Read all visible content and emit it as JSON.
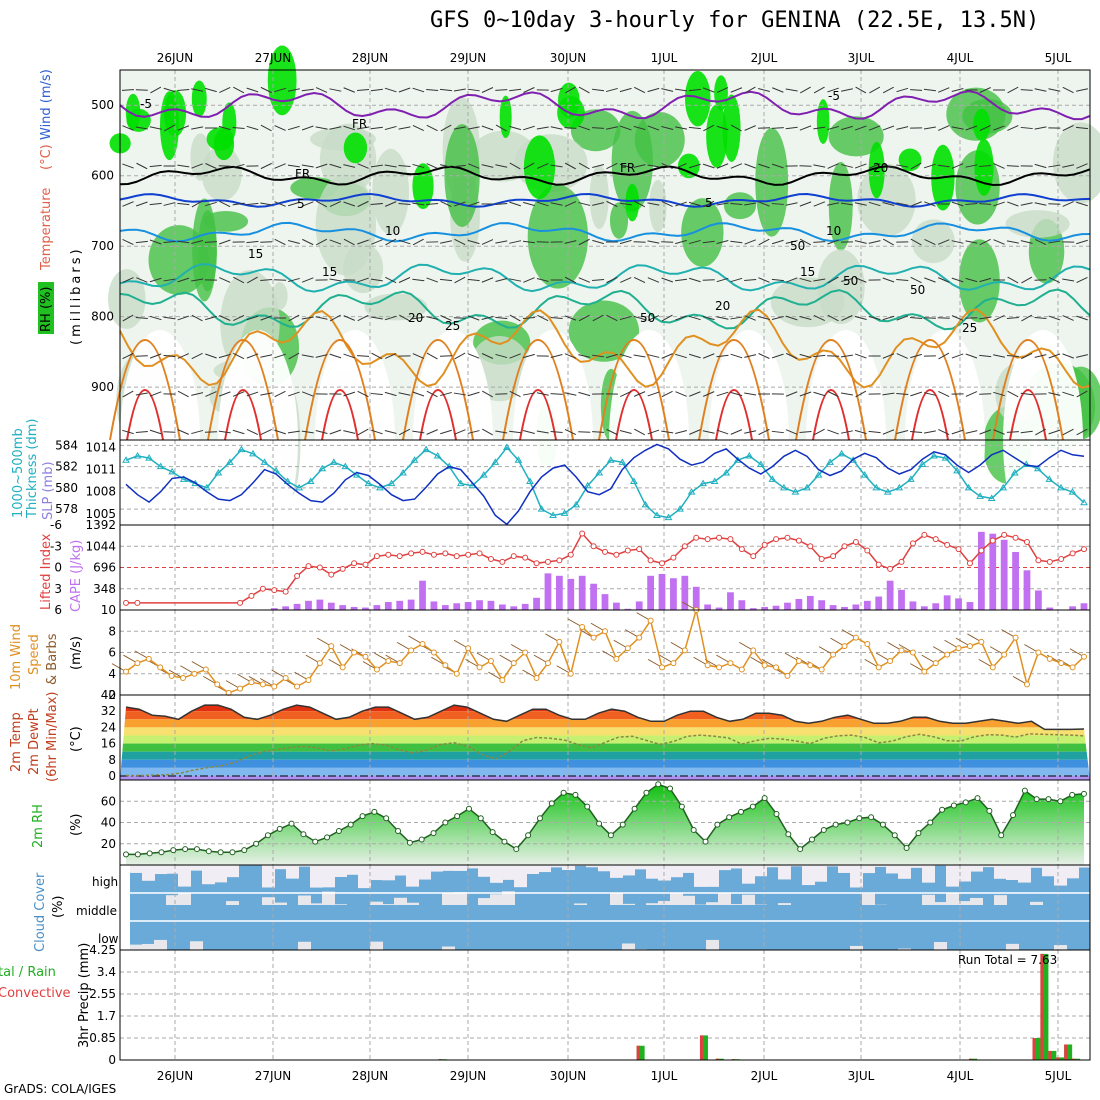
{
  "title": "GFS 0~10day 3-hourly for GENINA (22.5E, 13.5N)",
  "footer": "GrADS: COLA/IGES",
  "run_total_label": "Run Total = 7.63",
  "colors": {
    "temp_label": "#e0604a",
    "wind_label": "#3060d0",
    "rh_label": "#20b020",
    "thick": "#20b0c0",
    "slp": "#1030c0",
    "li": "#e04040",
    "cape": "#c070f0",
    "wind10": "#e09020",
    "barb": "#8b5a2b",
    "rh2m": "#20b020",
    "cloud": "#6aaad8",
    "rain": "#20b020",
    "conv": "#e04040"
  },
  "panel_labels": {
    "p1_a": "Temperature",
    "p1_b": "(°C)",
    "p1_c": "Wind (m/s)",
    "p1_rh": "RH (%)",
    "p1_unit": "(millibars)",
    "p2_a": "1000~500mb",
    "p2_b": "Thickness (dm)",
    "p2_c": "SLP (mb)",
    "p3_a": "Lifted Index",
    "p3_b": "CAPE (J/kg)",
    "p4_a": "10m Wind",
    "p4_b": "Speed",
    "p4_c": "& Barbs",
    "p4_d": "(m/s)",
    "p5_a": "2m Temp",
    "p5_b": "2m DewPt",
    "p5_c": "(6hr Min/Max)",
    "p5_d": "(°C)",
    "p6_a": "2m RH",
    "p6_b": "(%)",
    "p7_a": "Cloud Cover",
    "p7_b": "(%)",
    "p7_c": "high",
    "p7_d": "middle",
    "p7_e": "low",
    "p8_a": "tal / Rain",
    "p8_b": "Convective",
    "p8_c": "3hr Precip (mm)"
  },
  "chart_data": {
    "type": "meteogram",
    "x_dates": [
      "26JUN",
      "27JUN",
      "28JUN",
      "29JUN",
      "30JUN",
      "1JUL",
      "2JUL",
      "3JUL",
      "4JUL",
      "5JUL"
    ],
    "pressure_ticks": [
      "500",
      "600",
      "700",
      "800",
      "900"
    ],
    "temp_contour_labels": [
      "-5",
      "FR",
      "5",
      "10",
      "15",
      "20",
      "25",
      "-5",
      "FR",
      "5",
      "10",
      "15",
      "20",
      "25",
      "20",
      "FR",
      "15",
      "50",
      "50",
      "50",
      "50"
    ],
    "thickness": {
      "ticks": [
        "584",
        "582",
        "580",
        "578"
      ],
      "range": [
        576.5,
        584.5
      ],
      "values": [
        582.6,
        583.0,
        582.8,
        582.0,
        581.5,
        580.8,
        580.4,
        580.0,
        581.4,
        582.4,
        583.6,
        583.2,
        582.4,
        581.6,
        580.6,
        580.0,
        580.6,
        581.8,
        582.4,
        582.0,
        581.2,
        580.4,
        580.0,
        580.4,
        581.4,
        582.6,
        583.6,
        583.0,
        582.0,
        580.4,
        580.2,
        581.2,
        582.4,
        583.8,
        582.6,
        580.6,
        578.0,
        577.4,
        577.6,
        578.4,
        580.2,
        581.4,
        582.6,
        582.4,
        580.6,
        578.4,
        577.4,
        577.2,
        578.0,
        579.6,
        580.4,
        580.6,
        581.4,
        582.6,
        583.0,
        582.2,
        580.8,
        580.0,
        579.6,
        580.0,
        581.2,
        582.4,
        583.2,
        582.6,
        581.2,
        580.0,
        579.6,
        580.0,
        580.8,
        582.2,
        583.0,
        582.8,
        581.6,
        580.0,
        579.2,
        579.0,
        580.0,
        581.4,
        582.2,
        581.8,
        580.8,
        580.0,
        579.6,
        578.6
      ]
    },
    "slp": {
      "ticks": [
        "1014",
        "1011",
        "1008",
        "1005"
      ],
      "range": [
        1003.5,
        1015
      ],
      "values": [
        1009,
        1007.6,
        1006.6,
        1008.0,
        1009.8,
        1010.0,
        1009.2,
        1008.0,
        1007.0,
        1006.8,
        1007.6,
        1009.2,
        1011.0,
        1010.4,
        1009.0,
        1007.8,
        1006.8,
        1006.6,
        1007.8,
        1009.6,
        1010.6,
        1010.2,
        1009.0,
        1007.6,
        1006.8,
        1007.0,
        1008.6,
        1010.4,
        1011.4,
        1011.0,
        1009.2,
        1007.4,
        1004.8,
        1003.6,
        1005.4,
        1008.0,
        1010.0,
        1011.2,
        1011.6,
        1010.0,
        1008.0,
        1007.6,
        1008.4,
        1011.0,
        1012.6,
        1013.6,
        1014.4,
        1013.8,
        1012.4,
        1011.6,
        1012.0,
        1013.2,
        1013.8,
        1012.4,
        1011.2,
        1010.4,
        1011.4,
        1012.8,
        1013.6,
        1012.8,
        1011.0,
        1010.2,
        1010.8,
        1012.4,
        1013.2,
        1012.6,
        1011.2,
        1010.4,
        1011.0,
        1012.4,
        1013.4,
        1013.0,
        1011.6,
        1010.6,
        1011.6,
        1013.0,
        1013.6,
        1012.6,
        1011.6,
        1011.4,
        1012.6,
        1013.6,
        1013.0,
        1012.8
      ]
    },
    "lifted_index": {
      "ticks": [
        "-6",
        "-3",
        "0",
        "3",
        "6"
      ],
      "range": [
        6,
        -6
      ],
      "values": [
        5,
        5,
        null,
        null,
        null,
        null,
        null,
        null,
        null,
        null,
        5,
        4,
        3,
        3.2,
        3.4,
        1.2,
        -0.2,
        0,
        1.0,
        0.2,
        -0.6,
        -0.4,
        -1.6,
        -1.8,
        -1.6,
        -2.0,
        -2.2,
        -1.8,
        -2.0,
        -1.6,
        -1.8,
        -2.0,
        -1.2,
        -0.8,
        -1.6,
        -1.4,
        -0.6,
        -0.8,
        -1.0,
        -1.8,
        -4.8,
        -3.0,
        -2.2,
        -1.8,
        -2.4,
        -2.6,
        -1.0,
        -0.6,
        -1.4,
        -3.0,
        -4.2,
        -4.0,
        -4.2,
        -4.0,
        -2.6,
        -1.6,
        -3.2,
        -4.0,
        -4.2,
        -3.8,
        -3.0,
        -1.2,
        -1.6,
        -3.0,
        -3.6,
        -2.4,
        -0.4,
        0.2,
        -0.8,
        -3.4,
        -4.6,
        -4.0,
        -3.2,
        -2.6,
        -0.6,
        -2.4,
        -3.8,
        -4.6,
        -4.2,
        -3.6,
        -1.0,
        -0.8,
        -1.2,
        -2.0,
        -2.6
      ]
    },
    "cape": {
      "ticks": [
        "1392",
        "1044",
        "696",
        "348"
      ],
      "range": [
        0,
        1392
      ],
      "values": [
        0,
        0,
        0,
        0,
        0,
        0,
        0,
        0,
        0,
        0,
        0,
        0,
        0,
        30,
        60,
        100,
        150,
        170,
        120,
        80,
        50,
        40,
        80,
        130,
        150,
        170,
        480,
        140,
        80,
        110,
        130,
        160,
        150,
        90,
        60,
        100,
        200,
        600,
        560,
        510,
        560,
        430,
        260,
        120,
        20,
        140,
        560,
        590,
        520,
        560,
        380,
        90,
        40,
        290,
        160,
        30,
        50,
        70,
        120,
        180,
        230,
        160,
        80,
        50,
        90,
        150,
        220,
        480,
        330,
        140,
        60,
        110,
        240,
        190,
        130,
        1280,
        1250,
        1150,
        950,
        650,
        320,
        40,
        0,
        60,
        110
      ]
    },
    "wind10": {
      "ticks": [
        "10",
        "8",
        "6",
        "4",
        "2"
      ],
      "range": [
        2,
        10
      ],
      "values": [
        4.2,
        5.0,
        5.4,
        4.6,
        3.8,
        3.6,
        4.0,
        4.4,
        3.0,
        2.2,
        2.6,
        3.2,
        3.0,
        2.8,
        3.6,
        2.8,
        3.4,
        5.0,
        6.6,
        4.6,
        6.0,
        5.6,
        4.4,
        5.2,
        5.0,
        6.2,
        6.8,
        6.0,
        4.8,
        4.0,
        6.4,
        4.6,
        5.2,
        3.4,
        5.0,
        6.0,
        3.6,
        5.0,
        7.0,
        4.0,
        8.4,
        7.4,
        8.0,
        5.4,
        6.4,
        7.4,
        9.0,
        4.6,
        5.0,
        6.2,
        10.0,
        4.8,
        4.6,
        5.0,
        4.4,
        6.2,
        4.8,
        4.6,
        3.8,
        5.2,
        4.8,
        4.4,
        5.8,
        6.6,
        7.4,
        6.8,
        4.6,
        5.2,
        6.2,
        6.0,
        4.2,
        5.0,
        5.8,
        6.4,
        6.6,
        7.0,
        4.6,
        5.8,
        7.4,
        3.0,
        6.0,
        5.4,
        5.0,
        4.6,
        5.6
      ]
    },
    "temp2m": {
      "ticks": [
        "40",
        "32",
        "24",
        "16",
        "8",
        "0"
      ],
      "range": [
        -2,
        40
      ],
      "values": [
        34,
        33,
        30,
        29.5,
        28,
        32,
        35,
        35,
        33,
        29,
        28,
        30,
        33,
        35,
        34,
        31,
        28,
        29,
        32,
        34,
        34,
        31,
        28,
        29,
        32,
        35,
        34,
        31,
        28,
        27,
        30,
        33,
        33,
        30,
        28,
        28,
        31,
        33,
        32,
        29,
        27,
        27,
        30,
        32,
        32,
        29,
        27,
        28,
        31,
        31,
        30,
        27,
        26,
        27,
        29,
        30,
        28,
        26,
        26,
        27,
        29,
        29,
        27,
        26,
        26,
        27,
        28,
        27,
        26,
        27,
        23,
        23,
        23,
        23.2
      ]
    },
    "dewpt2m": {
      "values": [
        0.2,
        0.2,
        0.4,
        0.6,
        1.4,
        3.0,
        4.2,
        5.0,
        6.8,
        9.8,
        12.0,
        13.0,
        14.0,
        14.6,
        13.8,
        12.4,
        13.4,
        15.2,
        16.0,
        15.2,
        12.8,
        11.4,
        12.8,
        15.6,
        16.4,
        14.6,
        10.6,
        8.4,
        12.0,
        17.4,
        19.0,
        18.6,
        17.8,
        15.6,
        13.8,
        16.6,
        19.2,
        19.6,
        17.6,
        15.6,
        17.0,
        19.6,
        20.2,
        19.6,
        18.8,
        15.8,
        17.4,
        18.6,
        18.2,
        17.2,
        16.0,
        18.6,
        19.8,
        20.2,
        19.0,
        16.4,
        17.2,
        19.4,
        20.6,
        19.4,
        17.4,
        17.2,
        19.4,
        20.4,
        20.2,
        19.2,
        20.8,
        20.6,
        20.4,
        20.2,
        19.8
      ]
    },
    "rh2m": {
      "ticks": [
        "60",
        "40",
        "20"
      ],
      "range": [
        0,
        80
      ],
      "values": [
        10,
        10,
        11,
        12,
        14,
        15,
        15,
        13,
        12,
        12,
        14,
        20,
        28,
        34,
        39,
        29,
        22,
        26,
        32,
        38,
        46,
        50,
        44,
        32,
        21,
        24,
        30,
        40,
        46,
        53,
        44,
        31,
        22,
        15,
        28,
        44,
        58,
        68,
        66,
        55,
        39,
        28,
        38,
        53,
        68,
        76,
        72,
        55,
        33,
        22,
        38,
        45,
        50,
        55,
        63,
        48,
        29,
        15,
        24,
        33,
        38,
        40,
        44,
        45,
        38,
        28,
        16,
        30,
        40,
        52,
        56,
        59,
        63,
        51,
        28,
        47,
        70,
        62,
        62,
        60,
        66,
        67
      ]
    },
    "precip": {
      "ticks": [
        "4.25",
        "3.4",
        "2.55",
        "1.7",
        "0.85",
        "0"
      ],
      "range": [
        0,
        4.25
      ],
      "run_total": "7.63",
      "bars": [
        {
          "i": 40,
          "v": 0.03
        },
        {
          "i": 65,
          "v": 0.55
        },
        {
          "i": 73,
          "v": 0.95
        },
        {
          "i": 75,
          "v": 0.05
        },
        {
          "i": 77,
          "v": 0.03
        },
        {
          "i": 107,
          "v": 0.05
        },
        {
          "i": 115,
          "v": 0.85
        },
        {
          "i": 116,
          "v": 4.1
        },
        {
          "i": 117,
          "v": 0.35
        },
        {
          "i": 118,
          "v": 0.1
        },
        {
          "i": 119,
          "v": 0.6
        },
        {
          "i": 120,
          "v": 0.05
        }
      ]
    }
  }
}
